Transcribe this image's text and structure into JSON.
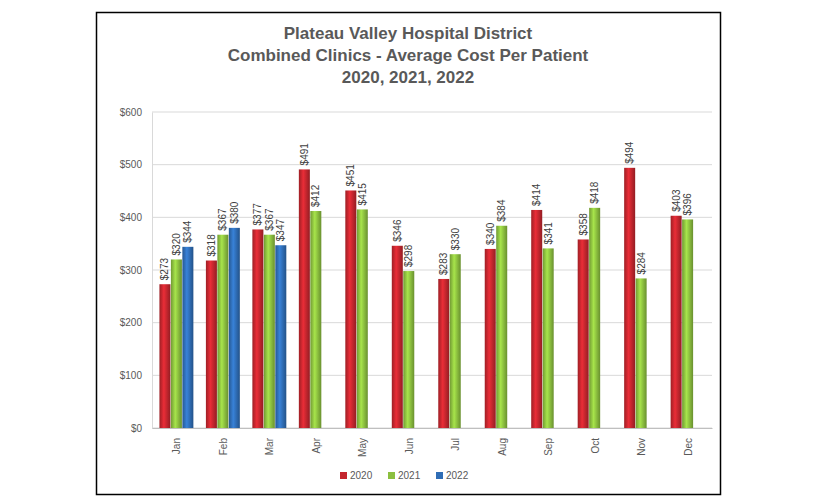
{
  "chart_data": {
    "type": "bar",
    "title": [
      "Plateau Valley Hospital District",
      "Combined Clinics  - Average Cost Per Patient",
      "2020, 2021, 2022"
    ],
    "categories": [
      "Jan",
      "Feb",
      "Mar",
      "Apr",
      "May",
      "Jun",
      "Jul",
      "Aug",
      "Sep",
      "Oct",
      "Nov",
      "Dec"
    ],
    "series": [
      {
        "name": "2020",
        "color": "#c4262e",
        "values": [
          273,
          318,
          377,
          491,
          451,
          346,
          283,
          340,
          414,
          358,
          494,
          403
        ],
        "value_labels": [
          "$273",
          "$318",
          "$377",
          "$491",
          "$451",
          "$346",
          "$283",
          "$340",
          "$414",
          "$358",
          "$494",
          "$403"
        ]
      },
      {
        "name": "2021",
        "color": "#8cbf3f",
        "values": [
          320,
          367,
          367,
          412,
          415,
          298,
          330,
          384,
          341,
          418,
          284,
          396
        ],
        "value_labels": [
          "$320",
          "$367",
          "$367",
          "$412",
          "$415",
          "$298",
          "$330",
          "$384",
          "$341",
          "$418",
          "$284",
          "$396"
        ]
      },
      {
        "name": "2022",
        "color": "#2f6db5",
        "values": [
          344,
          380,
          347,
          null,
          null,
          null,
          null,
          null,
          null,
          null,
          null,
          null
        ],
        "value_labels": [
          "$344",
          "$380",
          "$347",
          null,
          null,
          null,
          null,
          null,
          null,
          null,
          null,
          null
        ]
      }
    ],
    "ylim": [
      0,
      600
    ],
    "yticks": [
      {
        "value": 0,
        "label": "$0"
      },
      {
        "value": 100,
        "label": "$100"
      },
      {
        "value": 200,
        "label": "$200"
      },
      {
        "value": 300,
        "label": "$300"
      },
      {
        "value": 400,
        "label": "$400"
      },
      {
        "value": 500,
        "label": "$500"
      },
      {
        "value": 600,
        "label": "$600"
      }
    ],
    "grid": true,
    "data_labels": true,
    "legend": "bottom"
  }
}
